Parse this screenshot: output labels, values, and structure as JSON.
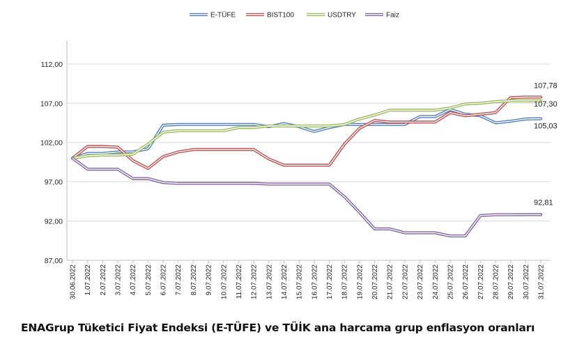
{
  "chart_data": {
    "type": "line",
    "title": "",
    "xlabel": "",
    "ylabel": "",
    "ylim": [
      87,
      115
    ],
    "yticks": [
      "87,00",
      "92,00",
      "97,00",
      "102,00",
      "107,00",
      "112,00"
    ],
    "ytick_values": [
      87,
      92,
      97,
      102,
      107,
      112
    ],
    "grid": true,
    "legend_position": "top",
    "categories": [
      "30.06.2022",
      "1.07.2022",
      "2.07.2022",
      "3.07.2022",
      "4.07.2022",
      "5.07.2022",
      "6.07.2022",
      "7.07.2022",
      "8.07.2022",
      "9.07.2022",
      "10.07.2022",
      "11.07.2022",
      "12.07.2022",
      "13.07.2022",
      "14.07.2022",
      "15.07.2022",
      "16.07.2022",
      "17.07.2022",
      "18.07.2022",
      "19.07.2022",
      "20.07.2022",
      "21.07.2022",
      "22.07.2022",
      "23.07.2022",
      "24.07.2022",
      "25.07.2022",
      "26.07.2022",
      "27.07.2022",
      "28.07.2022",
      "29.07.2022",
      "30.07.2022",
      "31.07.2022"
    ],
    "series": [
      {
        "name": "E-TÜFE",
        "color": "#4f7fc0",
        "values": [
          100,
          100.6,
          100.6,
          100.8,
          100.8,
          101.2,
          104.2,
          104.3,
          104.3,
          104.3,
          104.3,
          104.3,
          104.3,
          104.0,
          104.4,
          104.0,
          103.4,
          103.9,
          104.3,
          104.3,
          104.3,
          104.3,
          104.3,
          105.3,
          105.3,
          106.2,
          105.6,
          105.4,
          104.5,
          104.7,
          105.0,
          105.03
        ]
      },
      {
        "name": "BIST100",
        "color": "#c0504d",
        "values": [
          100,
          101.5,
          101.5,
          101.4,
          99.7,
          98.7,
          100.2,
          100.8,
          101.1,
          101.1,
          101.1,
          101.1,
          101.1,
          99.9,
          99.1,
          99.1,
          99.1,
          99.1,
          101.8,
          103.8,
          104.8,
          104.6,
          104.6,
          104.6,
          104.6,
          105.8,
          105.4,
          105.6,
          105.8,
          107.7,
          107.78,
          107.78
        ]
      },
      {
        "name": "USDTRY",
        "color": "#9bbb59",
        "values": [
          100,
          100.3,
          100.4,
          100.4,
          100.5,
          101.8,
          103.3,
          103.5,
          103.5,
          103.5,
          103.5,
          103.9,
          103.9,
          104.1,
          104.1,
          104.1,
          104.1,
          104.1,
          104.3,
          105.0,
          105.5,
          106.1,
          106.1,
          106.1,
          106.1,
          106.4,
          106.9,
          107.0,
          107.2,
          107.3,
          107.3,
          107.3
        ]
      },
      {
        "name": "Faiz",
        "color": "#8064a2",
        "values": [
          100,
          98.6,
          98.6,
          98.6,
          97.4,
          97.4,
          96.9,
          96.8,
          96.8,
          96.8,
          96.8,
          96.8,
          96.8,
          96.7,
          96.7,
          96.7,
          96.7,
          96.7,
          95.1,
          93.1,
          91.0,
          91.0,
          90.5,
          90.5,
          90.5,
          90.1,
          90.1,
          92.7,
          92.8,
          92.8,
          92.81,
          92.81
        ]
      }
    ],
    "end_labels": [
      {
        "series": "BIST100",
        "text": "107,78"
      },
      {
        "series": "USDTRY",
        "text": "107,30"
      },
      {
        "series": "E-TÜFE",
        "text": "105,03"
      },
      {
        "series": "Faiz",
        "text": "92,81"
      }
    ]
  },
  "caption": "ENAGrup Tüketici Fiyat Endeksi (E-TÜFE) ve TÜİK ana harcama grup enflasyon oranları"
}
